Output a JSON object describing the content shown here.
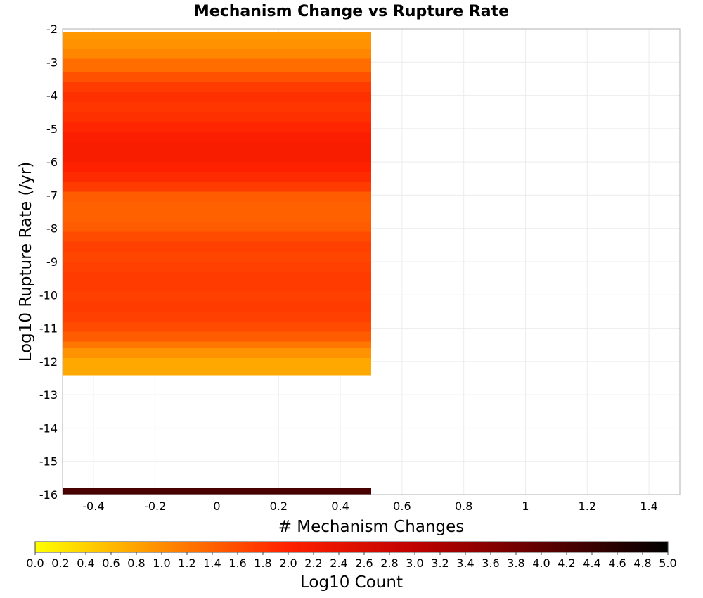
{
  "chart_data": {
    "type": "heatmap",
    "title": "Mechanism Change vs Rupture Rate",
    "xlabel": "# Mechanism Changes",
    "ylabel": "Log10 Rupture Rate (/yr)",
    "xlim": [
      -0.5,
      1.5
    ],
    "ylim": [
      -16,
      -2
    ],
    "x_ticks": [
      "-0.4",
      "-0.2",
      "0",
      "0.2",
      "0.4",
      "0.6",
      "0.8",
      "1",
      "1.2",
      "1.4"
    ],
    "x_tick_values": [
      -0.4,
      -0.2,
      0,
      0.2,
      0.4,
      0.6,
      0.8,
      1,
      1.2,
      1.4
    ],
    "y_ticks": [
      "-2",
      "-3",
      "-4",
      "-5",
      "-6",
      "-7",
      "-8",
      "-9",
      "-10",
      "-11",
      "-12",
      "-13",
      "-14",
      "-15",
      "-16"
    ],
    "y_tick_values": [
      -2,
      -3,
      -4,
      -5,
      -6,
      -7,
      -8,
      -9,
      -10,
      -11,
      -12,
      -13,
      -14,
      -15,
      -16
    ],
    "grid": true,
    "colorbar": {
      "label": "Log10 Count",
      "min": 0,
      "max": 5,
      "ticks": [
        "0.0",
        "0.2",
        "0.4",
        "0.6",
        "0.8",
        "1.0",
        "1.2",
        "1.4",
        "1.6",
        "1.8",
        "2.0",
        "2.2",
        "2.4",
        "2.6",
        "2.8",
        "3.0",
        "3.2",
        "3.4",
        "3.6",
        "3.8",
        "4.0",
        "4.2",
        "4.4",
        "4.6",
        "4.8",
        "5.0"
      ],
      "colors": [
        "#ffff00",
        "#ff8c00",
        "#ff2000",
        "#c00000",
        "#600000",
        "#000000"
      ]
    },
    "cell_x": 0,
    "cell_x_width": 1,
    "cells": [
      {
        "y": [
          -2.3,
          -2.1
        ],
        "value": 0.9
      },
      {
        "y": [
          -2.6,
          -2.3
        ],
        "value": 0.95
      },
      {
        "y": [
          -2.9,
          -2.6
        ],
        "value": 1.05
      },
      {
        "y": [
          -3.3,
          -2.9
        ],
        "value": 1.3
      },
      {
        "y": [
          -3.6,
          -3.3
        ],
        "value": 1.55
      },
      {
        "y": [
          -3.9,
          -3.6
        ],
        "value": 1.75
      },
      {
        "y": [
          -4.2,
          -3.9
        ],
        "value": 1.85
      },
      {
        "y": [
          -4.5,
          -4.2
        ],
        "value": 1.8
      },
      {
        "y": [
          -4.8,
          -4.5
        ],
        "value": 1.85
      },
      {
        "y": [
          -5.1,
          -4.8
        ],
        "value": 1.95
      },
      {
        "y": [
          -5.4,
          -5.1
        ],
        "value": 2.05
      },
      {
        "y": [
          -5.7,
          -5.4
        ],
        "value": 2.1
      },
      {
        "y": [
          -6.0,
          -5.7
        ],
        "value": 2.1
      },
      {
        "y": [
          -6.3,
          -6.0
        ],
        "value": 2.0
      },
      {
        "y": [
          -6.6,
          -6.3
        ],
        "value": 1.9
      },
      {
        "y": [
          -6.9,
          -6.6
        ],
        "value": 1.75
      },
      {
        "y": [
          -7.2,
          -6.9
        ],
        "value": 1.45
      },
      {
        "y": [
          -7.5,
          -7.2
        ],
        "value": 1.4
      },
      {
        "y": [
          -7.8,
          -7.5
        ],
        "value": 1.4
      },
      {
        "y": [
          -8.1,
          -7.8
        ],
        "value": 1.45
      },
      {
        "y": [
          -8.4,
          -8.1
        ],
        "value": 1.6
      },
      {
        "y": [
          -8.7,
          -8.4
        ],
        "value": 1.7
      },
      {
        "y": [
          -9.0,
          -8.7
        ],
        "value": 1.65
      },
      {
        "y": [
          -9.3,
          -9.0
        ],
        "value": 1.7
      },
      {
        "y": [
          -9.6,
          -9.3
        ],
        "value": 1.75
      },
      {
        "y": [
          -9.9,
          -9.6
        ],
        "value": 1.75
      },
      {
        "y": [
          -10.2,
          -9.9
        ],
        "value": 1.7
      },
      {
        "y": [
          -10.5,
          -10.2
        ],
        "value": 1.75
      },
      {
        "y": [
          -10.8,
          -10.5
        ],
        "value": 1.7
      },
      {
        "y": [
          -11.1,
          -10.8
        ],
        "value": 1.6
      },
      {
        "y": [
          -11.4,
          -11.1
        ],
        "value": 1.45
      },
      {
        "y": [
          -11.6,
          -11.4
        ],
        "value": 1.2
      },
      {
        "y": [
          -11.9,
          -11.6
        ],
        "value": 0.95
      },
      {
        "y": [
          -12.4,
          -11.9
        ],
        "value": 0.75
      },
      {
        "y": [
          -16.0,
          -15.8
        ],
        "value": 4.25
      }
    ]
  }
}
